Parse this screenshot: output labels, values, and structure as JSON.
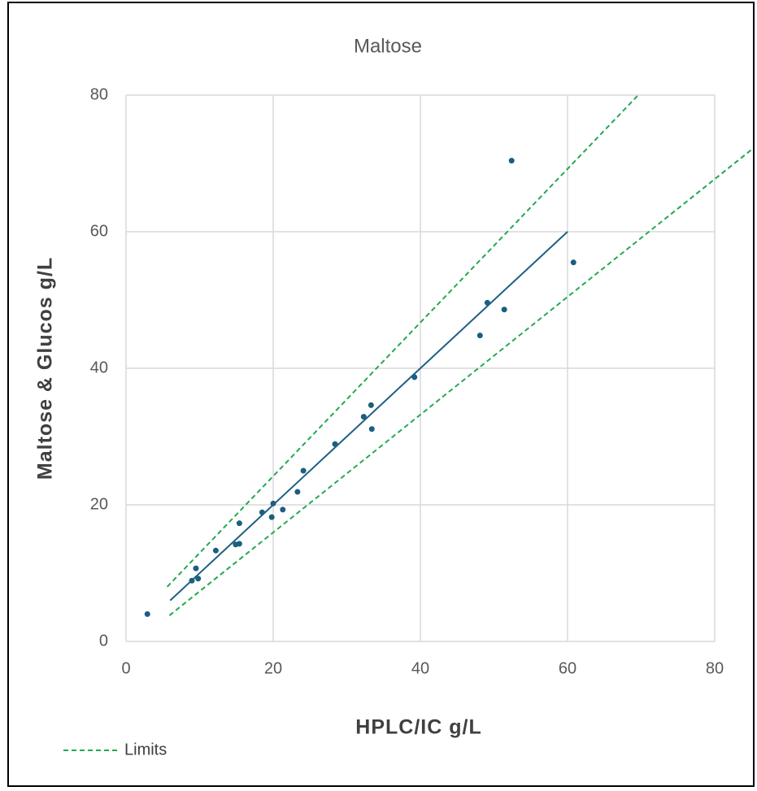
{
  "chart_data": {
    "type": "scatter",
    "title": "Maltose",
    "x_label": "HPLC/IC g/L",
    "y_label": "Maltose & Glucos  g/L",
    "xlim": [
      0,
      80
    ],
    "ylim": [
      0,
      80
    ],
    "xticks": [
      0,
      20,
      40,
      60,
      80
    ],
    "yticks": [
      0,
      20,
      40,
      60,
      80
    ],
    "grid": true,
    "legend": "bottom-left",
    "series": [
      {
        "style": "markers",
        "color": "#1b5e80",
        "x": [
          2.9,
          8.95,
          9.5,
          9.8,
          12.2,
          14.9,
          15.4,
          15.4,
          18.5,
          19.8,
          20,
          21.3,
          23.3,
          24.1,
          28.4,
          32.3,
          33.3,
          33.4,
          39.2,
          48.1,
          49.1,
          51.4,
          52.4,
          60.8
        ],
        "values": [
          4,
          8.9,
          10.7,
          9.2,
          13.3,
          14.2,
          14.3,
          17.3,
          18.9,
          18.2,
          20.2,
          19.3,
          21.9,
          25,
          28.9,
          32.9,
          34.6,
          31.1,
          38.7,
          44.8,
          49.6,
          48.6,
          70.4,
          55.5
        ]
      },
      {
        "style": "line",
        "color": "#1f5f84",
        "x": [
          6,
          60
        ],
        "values": [
          6,
          60
        ]
      },
      {
        "name": "Limits",
        "style": "dashed",
        "color": "#22a852",
        "x": [
          5.6,
          69.6
        ],
        "values": [
          8,
          80
        ]
      },
      {
        "style": "dashed",
        "color": "#22a852",
        "x": [
          5.9,
          85.1
        ],
        "values": [
          3.8,
          72.1
        ]
      }
    ]
  }
}
